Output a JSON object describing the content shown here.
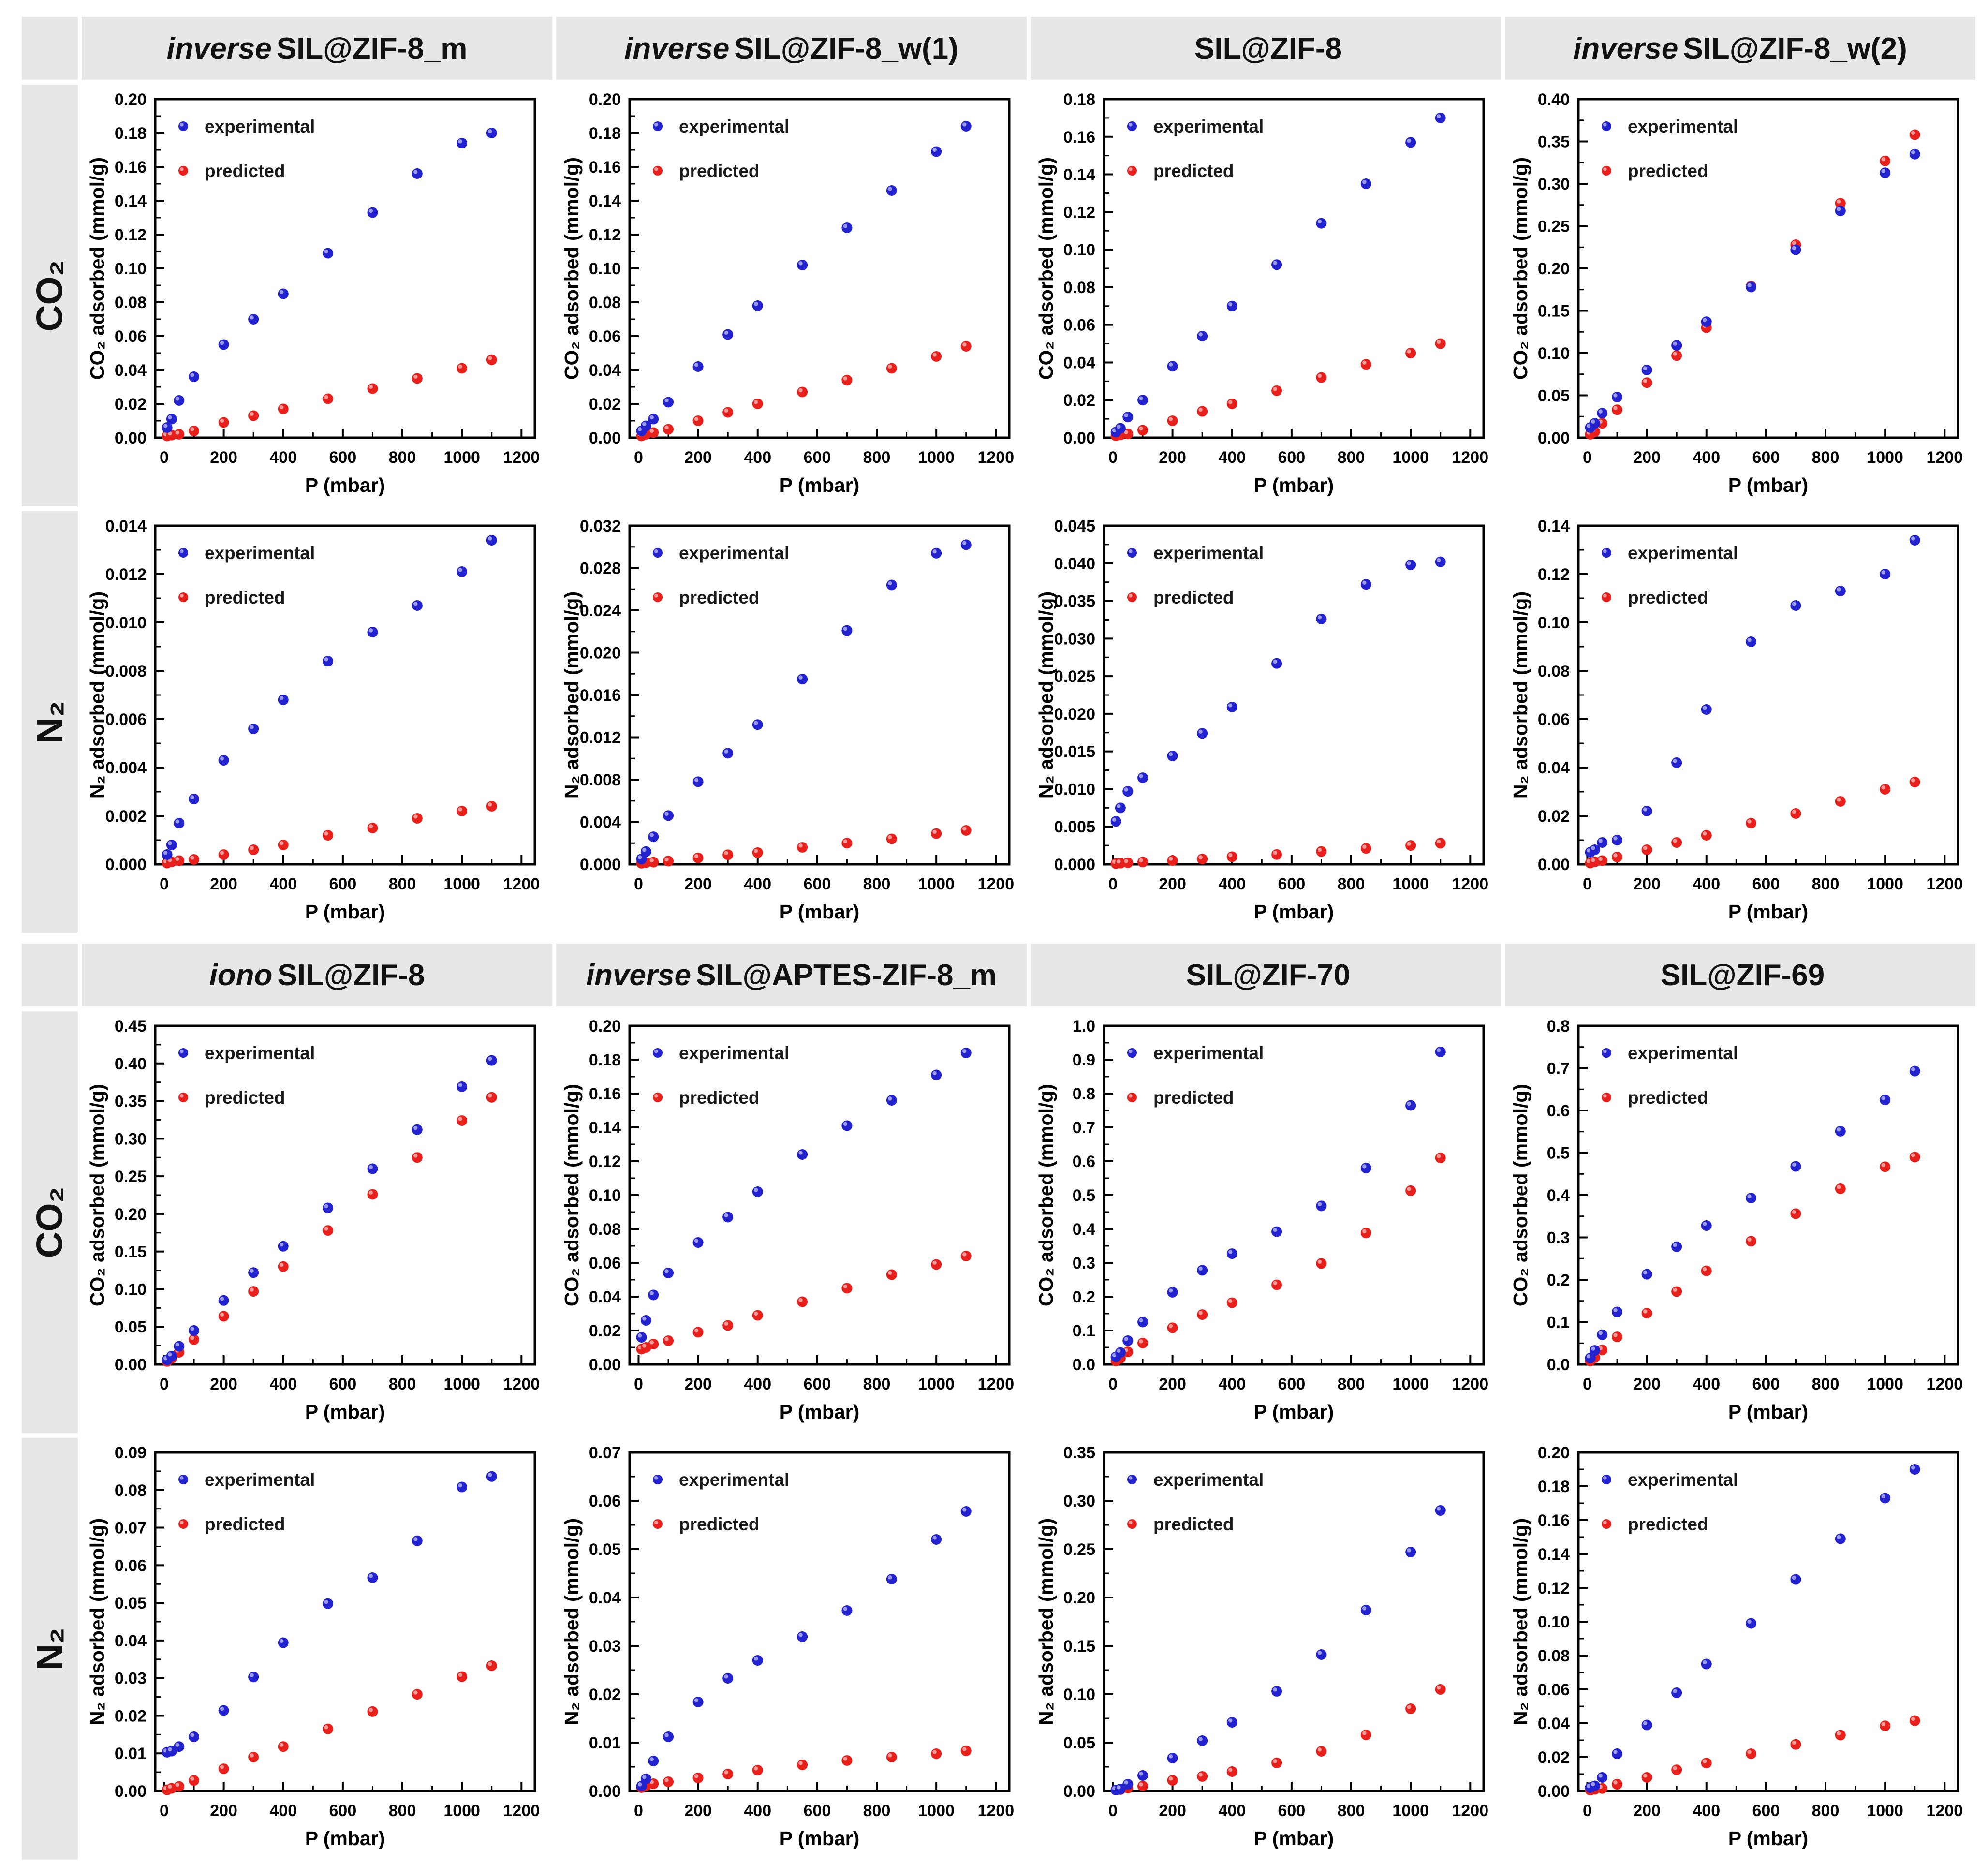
{
  "figure": {
    "xlabel": "P (mbar)",
    "legend": {
      "experimental": "experimental",
      "predicted": "predicted"
    },
    "colors": {
      "experimental": "#2222CF",
      "predicted": "#E8201C",
      "header_bg": "#e7e7e7",
      "frame": "#000000"
    }
  },
  "chart_data": {
    "type": "scatter",
    "x_label": "P (mbar)",
    "x_ticks": [
      0,
      200,
      400,
      600,
      800,
      1000,
      1200
    ],
    "x_range": [
      -30,
      1245
    ],
    "pressures": [
      10,
      25,
      50,
      100,
      200,
      300,
      400,
      550,
      700,
      850,
      1000,
      1100
    ],
    "legend_position": "top-left",
    "grid": false,
    "sections": [
      {
        "headers": [
          {
            "prefix": "inverse ",
            "name": "SIL@ZIF-8_m"
          },
          {
            "prefix": "inverse ",
            "name": "SIL@ZIF-8_w(1)"
          },
          {
            "prefix": "",
            "name": "SIL@ZIF-8"
          },
          {
            "prefix": "inverse ",
            "name": "SIL@ZIF-8_w(2)"
          }
        ],
        "rows": [
          {
            "gas": "CO₂",
            "charts": [
              {
                "material": "inverse SIL@ZIF-8_m",
                "ylabel": "CO₂ adsorbed (mmol/g)",
                "ylim": [
                  0,
                  0.2
                ],
                "ytick": 0.02,
                "ydec": 2,
                "experimental": [
                  0.006,
                  0.011,
                  0.022,
                  0.036,
                  0.055,
                  0.07,
                  0.085,
                  0.109,
                  0.133,
                  0.156,
                  0.174,
                  0.18
                ],
                "predicted": [
                  0.001,
                  0.0015,
                  0.002,
                  0.004,
                  0.009,
                  0.013,
                  0.017,
                  0.023,
                  0.029,
                  0.035,
                  0.041,
                  0.046
                ]
              },
              {
                "material": "inverse SIL@ZIF-8_w(1)",
                "ylabel": "CO₂ adsorbed (mmol/g)",
                "ylim": [
                  0,
                  0.2
                ],
                "ytick": 0.02,
                "ydec": 2,
                "experimental": [
                  0.004,
                  0.007,
                  0.011,
                  0.021,
                  0.042,
                  0.061,
                  0.078,
                  0.102,
                  0.124,
                  0.146,
                  0.169,
                  0.184
                ],
                "predicted": [
                  0.001,
                  0.002,
                  0.003,
                  0.005,
                  0.01,
                  0.015,
                  0.02,
                  0.027,
                  0.034,
                  0.041,
                  0.048,
                  0.054
                ]
              },
              {
                "material": "SIL@ZIF-8",
                "ylabel": "CO₂ adsorbed (mmol/g)",
                "ylim": [
                  0,
                  0.18
                ],
                "ytick": 0.02,
                "ydec": 2,
                "experimental": [
                  0.003,
                  0.005,
                  0.011,
                  0.02,
                  0.038,
                  0.054,
                  0.07,
                  0.092,
                  0.114,
                  0.135,
                  0.157,
                  0.17
                ],
                "predicted": [
                  0.001,
                  0.0015,
                  0.002,
                  0.004,
                  0.009,
                  0.014,
                  0.018,
                  0.025,
                  0.032,
                  0.039,
                  0.045,
                  0.05
                ]
              },
              {
                "material": "inverse SIL@ZIF-8_w(2)",
                "ylabel": "CO₂ adsorbed (mmol/g)",
                "ylim": [
                  0,
                  0.4
                ],
                "ytick": 0.05,
                "ydec": 2,
                "experimental": [
                  0.012,
                  0.017,
                  0.029,
                  0.048,
                  0.08,
                  0.109,
                  0.137,
                  0.178,
                  0.222,
                  0.268,
                  0.313,
                  0.335
                ],
                "predicted": [
                  0.004,
                  0.007,
                  0.017,
                  0.033,
                  0.065,
                  0.097,
                  0.13,
                  0.179,
                  0.228,
                  0.277,
                  0.327,
                  0.358
                ]
              }
            ]
          },
          {
            "gas": "N₂",
            "charts": [
              {
                "material": "inverse SIL@ZIF-8_m",
                "ylabel": "N₂ adsorbed (mmol/g)",
                "ylim": [
                  0,
                  0.014
                ],
                "ytick": 0.002,
                "ydec": 3,
                "experimental": [
                  0.0004,
                  0.0008,
                  0.0017,
                  0.0027,
                  0.0043,
                  0.0056,
                  0.0068,
                  0.0084,
                  0.0096,
                  0.0107,
                  0.0121,
                  0.0134
                ],
                "predicted": [
                  5e-05,
                  0.0001,
                  0.00015,
                  0.0002,
                  0.0004,
                  0.0006,
                  0.0008,
                  0.0012,
                  0.0015,
                  0.0019,
                  0.0022,
                  0.0024
                ]
              },
              {
                "material": "inverse SIL@ZIF-8_w(1)",
                "ylabel": "N₂ adsorbed (mmol/g)",
                "ylim": [
                  0,
                  0.032
                ],
                "ytick": 0.004,
                "ydec": 3,
                "experimental": [
                  0.0005,
                  0.0012,
                  0.0026,
                  0.0046,
                  0.0078,
                  0.0105,
                  0.0132,
                  0.0175,
                  0.0221,
                  0.0264,
                  0.0294,
                  0.0302
                ],
                "predicted": [
                  0.0001,
                  0.00015,
                  0.0002,
                  0.0003,
                  0.0006,
                  0.0009,
                  0.0011,
                  0.0016,
                  0.002,
                  0.0024,
                  0.0029,
                  0.0032
                ]
              },
              {
                "material": "SIL@ZIF-8",
                "ylabel": "N₂ adsorbed (mmol/g)",
                "ylim": [
                  0,
                  0.045
                ],
                "ytick": 0.005,
                "ydec": 3,
                "experimental": [
                  0.0057,
                  0.0075,
                  0.0097,
                  0.0115,
                  0.0144,
                  0.0174,
                  0.0209,
                  0.0267,
                  0.0326,
                  0.0372,
                  0.0398,
                  0.0402
                ],
                "predicted": [
                  0.0001,
                  0.00015,
                  0.0002,
                  0.0003,
                  0.0005,
                  0.0007,
                  0.001,
                  0.0013,
                  0.0017,
                  0.0021,
                  0.0025,
                  0.0028
                ]
              },
              {
                "material": "inverse SIL@ZIF-8_w(2)",
                "ylabel": "N₂ adsorbed (mmol/g)",
                "ylim": [
                  0,
                  0.14
                ],
                "ytick": 0.02,
                "ydec": 2,
                "experimental": [
                  0.005,
                  0.006,
                  0.009,
                  0.01,
                  0.022,
                  0.042,
                  0.064,
                  0.092,
                  0.107,
                  0.113,
                  0.12,
                  0.134
                ],
                "predicted": [
                  0.0005,
                  0.001,
                  0.0015,
                  0.003,
                  0.006,
                  0.009,
                  0.012,
                  0.017,
                  0.021,
                  0.026,
                  0.031,
                  0.034
                ]
              }
            ]
          }
        ]
      },
      {
        "headers": [
          {
            "prefix": "iono",
            "name": "SIL@ZIF-8"
          },
          {
            "prefix": "inverse ",
            "name": "SIL@APTES-ZIF-8_m"
          },
          {
            "prefix": "",
            "name": "SIL@ZIF-70"
          },
          {
            "prefix": "",
            "name": "SIL@ZIF-69"
          }
        ],
        "rows": [
          {
            "gas": "CO₂",
            "charts": [
              {
                "material": "ionoSIL@ZIF-8",
                "ylabel": "CO₂ adsorbed (mmol/g)",
                "ylim": [
                  0,
                  0.45
                ],
                "ytick": 0.05,
                "ydec": 2,
                "experimental": [
                  0.006,
                  0.011,
                  0.024,
                  0.045,
                  0.085,
                  0.122,
                  0.157,
                  0.208,
                  0.26,
                  0.312,
                  0.369,
                  0.404
                ],
                "predicted": [
                  0.004,
                  0.008,
                  0.016,
                  0.033,
                  0.064,
                  0.097,
                  0.13,
                  0.178,
                  0.226,
                  0.275,
                  0.324,
                  0.355
                ]
              },
              {
                "material": "inverse SIL@APTES-ZIF-8_m",
                "ylabel": "CO₂ adsorbed (mmol/g)",
                "ylim": [
                  0,
                  0.2
                ],
                "ytick": 0.02,
                "ydec": 2,
                "experimental": [
                  0.016,
                  0.026,
                  0.041,
                  0.054,
                  0.072,
                  0.087,
                  0.102,
                  0.124,
                  0.141,
                  0.156,
                  0.171,
                  0.184
                ],
                "predicted": [
                  0.009,
                  0.01,
                  0.012,
                  0.014,
                  0.019,
                  0.023,
                  0.029,
                  0.037,
                  0.045,
                  0.053,
                  0.059,
                  0.064
                ]
              },
              {
                "material": "SIL@ZIF-70",
                "ylabel": "CO₂ adsorbed (mmol/g)",
                "ylim": [
                  0,
                  1.0
                ],
                "ytick": 0.1,
                "ydec": 1,
                "experimental": [
                  0.022,
                  0.035,
                  0.07,
                  0.125,
                  0.213,
                  0.278,
                  0.327,
                  0.392,
                  0.468,
                  0.58,
                  0.765,
                  0.923
                ],
                "predicted": [
                  0.01,
                  0.018,
                  0.037,
                  0.063,
                  0.108,
                  0.147,
                  0.182,
                  0.235,
                  0.298,
                  0.388,
                  0.513,
                  0.61
                ]
              },
              {
                "material": "SIL@ZIF-69",
                "ylabel": "CO₂ adsorbed (mmol/g)",
                "ylim": [
                  0,
                  0.8
                ],
                "ytick": 0.1,
                "ydec": 1,
                "experimental": [
                  0.015,
                  0.033,
                  0.07,
                  0.124,
                  0.213,
                  0.278,
                  0.328,
                  0.393,
                  0.468,
                  0.551,
                  0.625,
                  0.693
                ],
                "predicted": [
                  0.008,
                  0.016,
                  0.034,
                  0.065,
                  0.121,
                  0.172,
                  0.221,
                  0.291,
                  0.356,
                  0.415,
                  0.467,
                  0.49
                ]
              }
            ]
          },
          {
            "gas": "N₂",
            "charts": [
              {
                "material": "ionoSIL@ZIF-8",
                "ylabel": "N₂ adsorbed (mmol/g)",
                "ylim": [
                  0,
                  0.09
                ],
                "ytick": 0.01,
                "ydec": 2,
                "experimental": [
                  0.0103,
                  0.0106,
                  0.0118,
                  0.0144,
                  0.0214,
                  0.0303,
                  0.0394,
                  0.0498,
                  0.0567,
                  0.0665,
                  0.0808,
                  0.0836
                ],
                "predicted": [
                  0.0003,
                  0.0007,
                  0.0012,
                  0.0028,
                  0.0059,
                  0.009,
                  0.0118,
                  0.0165,
                  0.0211,
                  0.0257,
                  0.0304,
                  0.0333
                ]
              },
              {
                "material": "inverse SIL@APTES-ZIF-8_m",
                "ylabel": "N₂ adsorbed (mmol/g)",
                "ylim": [
                  0,
                  0.07
                ],
                "ytick": 0.01,
                "ydec": 2,
                "experimental": [
                  0.001,
                  0.0025,
                  0.0062,
                  0.0112,
                  0.0184,
                  0.0233,
                  0.027,
                  0.0319,
                  0.0373,
                  0.0438,
                  0.052,
                  0.0578
                ],
                "predicted": [
                  0.0007,
                  0.001,
                  0.0015,
                  0.0019,
                  0.0027,
                  0.0035,
                  0.0043,
                  0.0054,
                  0.0063,
                  0.007,
                  0.0077,
                  0.0083
                ]
              },
              {
                "material": "SIL@ZIF-70",
                "ylabel": "N₂ adsorbed (mmol/g)",
                "ylim": [
                  0,
                  0.35
                ],
                "ytick": 0.05,
                "ydec": 2,
                "experimental": [
                  0.001,
                  0.002,
                  0.007,
                  0.016,
                  0.034,
                  0.052,
                  0.071,
                  0.103,
                  0.141,
                  0.187,
                  0.247,
                  0.29
                ],
                "predicted": [
                  0.001,
                  0.0015,
                  0.003,
                  0.005,
                  0.011,
                  0.015,
                  0.02,
                  0.029,
                  0.041,
                  0.058,
                  0.085,
                  0.105
                ]
              },
              {
                "material": "SIL@ZIF-69",
                "ylabel": "N₂ adsorbed (mmol/g)",
                "ylim": [
                  0,
                  0.2
                ],
                "ytick": 0.02,
                "ydec": 2,
                "experimental": [
                  0.002,
                  0.003,
                  0.008,
                  0.022,
                  0.039,
                  0.058,
                  0.075,
                  0.099,
                  0.125,
                  0.149,
                  0.173,
                  0.19
                ],
                "predicted": [
                  0.0005,
                  0.001,
                  0.0015,
                  0.004,
                  0.008,
                  0.0125,
                  0.0165,
                  0.022,
                  0.0275,
                  0.033,
                  0.0385,
                  0.0415
                ]
              }
            ]
          }
        ]
      }
    ]
  }
}
